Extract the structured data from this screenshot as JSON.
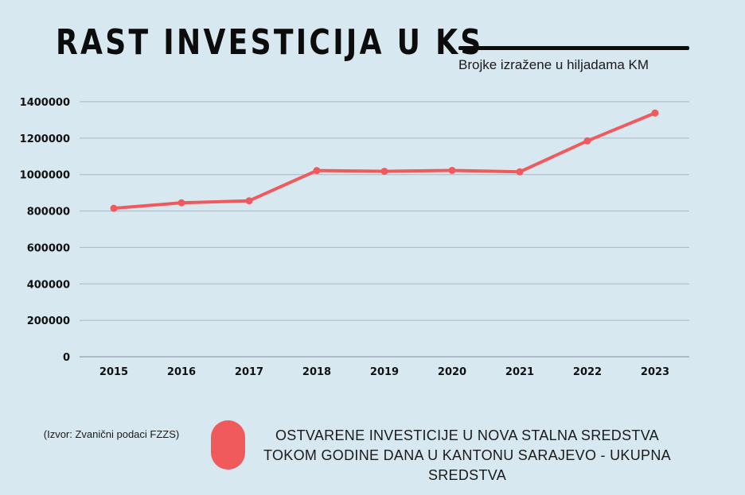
{
  "header": {
    "title": "RAST INVESTICIJA U KS",
    "subtitle": "Brojke izražene u hiljadama KM"
  },
  "source_note": "(Izvor: Zvanični podaci FZZS)",
  "legend": {
    "label": "OSTVARENE INVESTICIJE U NOVA STALNA SREDSTVA TOKOM GODINE DANA U KANTONU SARAJEVO - UKUPNA SREDSTVA",
    "color": "#f05a5c"
  },
  "chart_data": {
    "type": "line",
    "title": "RAST INVESTICIJA U KS",
    "subtitle": "Brojke izražene u hiljadama KM",
    "categories": [
      "2015",
      "2016",
      "2017",
      "2018",
      "2019",
      "2020",
      "2021",
      "2022",
      "2023"
    ],
    "series": [
      {
        "name": "OSTVARENE INVESTICIJE U NOVA STALNA SREDSTVA TOKOM GODINE DANA U KANTONU SARAJEVO - UKUPNA SREDSTVA",
        "color": "#f05a5c",
        "values": [
          815000,
          845000,
          856000,
          1022000,
          1018000,
          1023000,
          1015000,
          1185000,
          1338000
        ]
      }
    ],
    "y_ticks": [
      "0",
      "200000",
      "400000",
      "600000",
      "800000",
      "1000000",
      "1200000",
      "1400000"
    ],
    "ylim": [
      0,
      1400000
    ],
    "grid": true,
    "legend_position": "bottom"
  }
}
